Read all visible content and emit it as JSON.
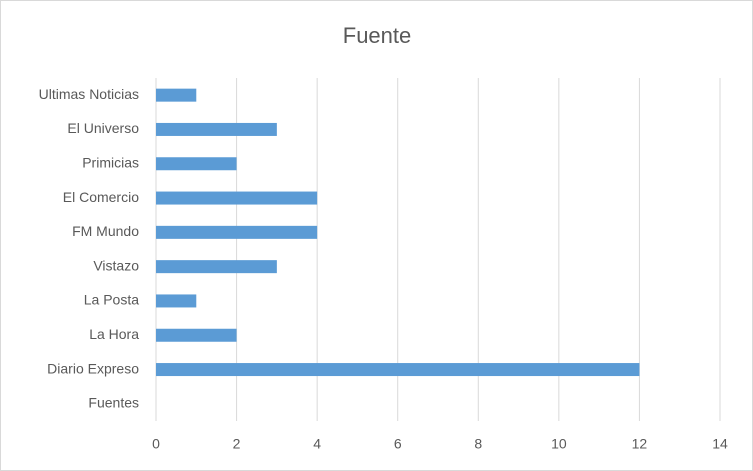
{
  "chart_data": {
    "type": "hbar",
    "title": "Fuente",
    "categories": [
      "Ultimas Noticias",
      "El Universo",
      "Primicias",
      "El Comercio",
      "FM Mundo",
      "Vistazo",
      "La Posta",
      "La Hora",
      "Diario Expreso",
      "Fuentes"
    ],
    "values": [
      1,
      3,
      2,
      4,
      4,
      3,
      1,
      2,
      12,
      null
    ],
    "color": "#5b9bd5",
    "xlim": [
      0,
      14
    ],
    "xticks": [
      0,
      2,
      4,
      6,
      8,
      10,
      12,
      14
    ],
    "grid": true
  }
}
